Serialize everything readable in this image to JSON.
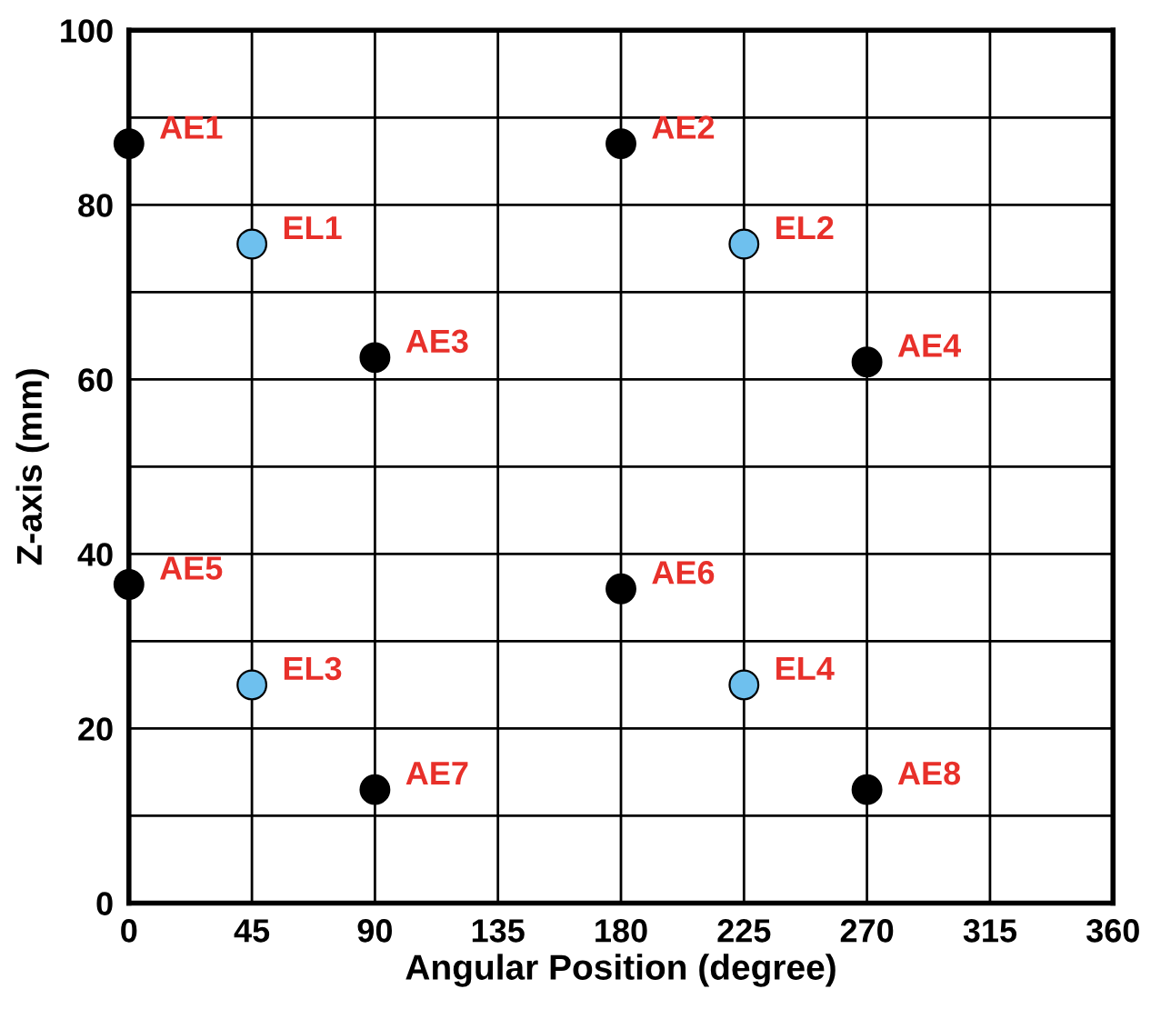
{
  "chart_data": {
    "type": "scatter",
    "xlabel": "Angular Position (degree)",
    "ylabel": "Z-axis (mm)",
    "xlim": [
      0,
      360
    ],
    "ylim": [
      0,
      100
    ],
    "xticks": [
      0,
      45,
      90,
      135,
      180,
      225,
      270,
      315,
      360
    ],
    "yticks": [
      0,
      {
        "value": 10,
        "label": null
      },
      20,
      {
        "value": 30,
        "label": null
      },
      40,
      {
        "value": 50,
        "label": null
      },
      60,
      {
        "value": 70,
        "label": null
      },
      80,
      {
        "value": 90,
        "label": null
      },
      100
    ],
    "grid": true,
    "marker": "circle",
    "series": [
      {
        "color": "#000000",
        "x": [
          0,
          180,
          90,
          270,
          0,
          180,
          90,
          270
        ],
        "values": [
          87,
          87,
          62.5,
          62,
          36.5,
          36,
          13,
          13
        ]
      },
      {
        "color": "#6ec0ee",
        "x": [
          45,
          225,
          45,
          225
        ],
        "values": [
          75.5,
          75.5,
          25,
          25
        ]
      }
    ],
    "annotations": [
      {
        "text": "AE1",
        "x": 0,
        "y": 87
      },
      {
        "text": "AE2",
        "x": 180,
        "y": 87
      },
      {
        "text": "EL1",
        "x": 45,
        "y": 75.5
      },
      {
        "text": "EL2",
        "x": 225,
        "y": 75.5
      },
      {
        "text": "AE3",
        "x": 90,
        "y": 62.5
      },
      {
        "text": "AE4",
        "x": 270,
        "y": 62
      },
      {
        "text": "AE5",
        "x": 0,
        "y": 36.5
      },
      {
        "text": "AE6",
        "x": 180,
        "y": 36
      },
      {
        "text": "EL3",
        "x": 45,
        "y": 25
      },
      {
        "text": "EL4",
        "x": 225,
        "y": 25
      },
      {
        "text": "AE7",
        "x": 90,
        "y": 13
      },
      {
        "text": "AE8",
        "x": 270,
        "y": 13
      }
    ]
  }
}
